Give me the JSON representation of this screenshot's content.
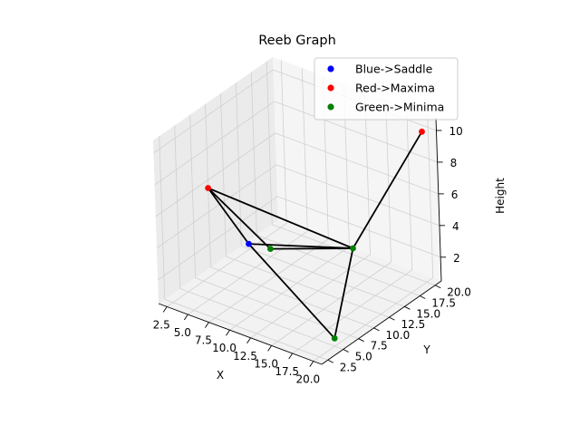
{
  "chart_data": {
    "type": "scatter",
    "projection": "3d",
    "title": "Reeb Graph",
    "xlabel": "X",
    "ylabel": "Y",
    "zlabel": "Height",
    "xlim": [
      1.5,
      21
    ],
    "ylim": [
      1.5,
      21
    ],
    "zlim": [
      0.5,
      10.8
    ],
    "x_ticks": [
      "2.5",
      "5.0",
      "7.5",
      "10.0",
      "12.5",
      "15.0",
      "17.5",
      "20.0"
    ],
    "y_ticks": [
      "2.5",
      "5.0",
      "7.5",
      "10.0",
      "12.5",
      "15.0",
      "17.5",
      "20.0"
    ],
    "z_ticks": [
      "2",
      "4",
      "6",
      "8",
      "10"
    ],
    "grid": true,
    "legend_position": "top-right",
    "colors": {
      "saddle": "#0000ff",
      "maxima": "#ff0000",
      "minima": "#008000",
      "edge": "#000000"
    },
    "series": [
      {
        "name": "Blue->Saddle",
        "color": "#0000ff",
        "points": [
          {
            "id": "s1",
            "x": 10,
            "y": 5,
            "z": 5
          }
        ]
      },
      {
        "name": "Red->Maxima",
        "color": "#ff0000",
        "points": [
          {
            "id": "m1",
            "x": 1.5,
            "y": 10,
            "z": 5.5
          },
          {
            "id": "m2",
            "x": 20,
            "y": 20,
            "z": 10
          }
        ]
      },
      {
        "name": "Green->Minima",
        "color": "#008000",
        "points": [
          {
            "id": "g1",
            "x": 5,
            "y": 15,
            "z": 1
          },
          {
            "id": "g2",
            "x": 20,
            "y": 5,
            "z": 1
          },
          {
            "id": "g3",
            "x": 15,
            "y": 15,
            "z": 3
          }
        ]
      }
    ],
    "edges": [
      [
        "m1",
        "s1"
      ],
      [
        "m1",
        "g3"
      ],
      [
        "m1",
        "g1"
      ],
      [
        "g1",
        "g3"
      ],
      [
        "s1",
        "g2"
      ],
      [
        "s1",
        "g3"
      ],
      [
        "g2",
        "g3"
      ],
      [
        "g3",
        "m2"
      ]
    ]
  }
}
